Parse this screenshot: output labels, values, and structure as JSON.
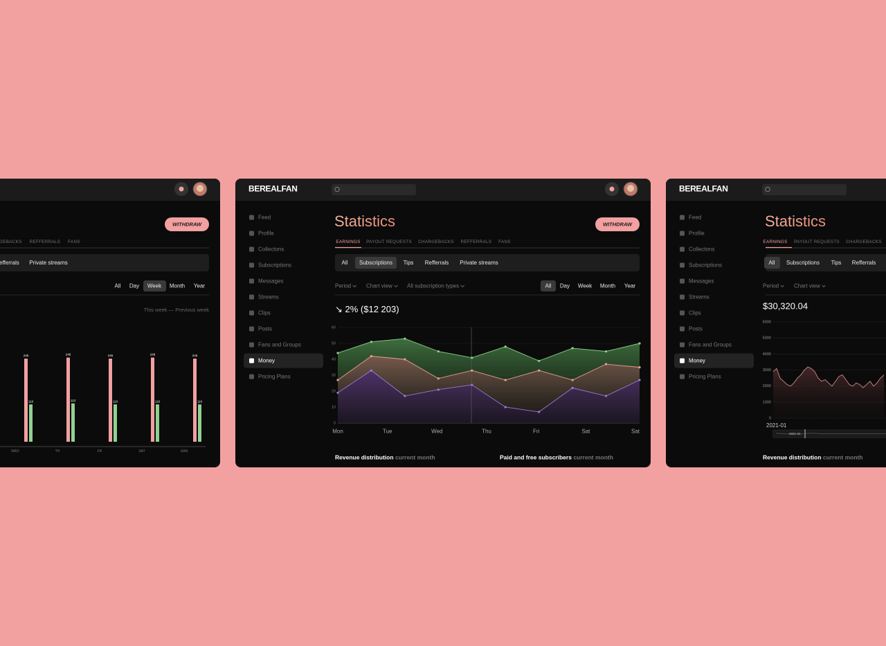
{
  "left_panel": {
    "withdraw": "WITHDRAW",
    "tabs": [
      "GEBACKS",
      "REFFERRALS",
      "FANS"
    ],
    "filters": [
      "efferrals",
      "Private streams"
    ],
    "periods": [
      "All",
      "Day",
      "Week",
      "Month",
      "Year"
    ],
    "legend": "This week — Previous week",
    "chart": {
      "type": "bar",
      "categories": [
        "WED",
        "TH",
        "FR",
        "SAT",
        "SAN"
      ],
      "series": [
        {
          "color": "#f2a0a0",
          "values": [
            245,
            248,
            245,
            248,
            245
          ]
        },
        {
          "color": "#8fd18f",
          "values": [
            110,
            113,
            110,
            110,
            110
          ]
        }
      ]
    }
  },
  "center_panel": {
    "logo": "BEREALFAN",
    "sidebar": [
      "Feed",
      "Profile",
      "Collectons",
      "Subscriptions",
      "Messages",
      "Streams",
      "Clips",
      "Posts",
      "Fans and Groups",
      "Money",
      "Pricing Plans"
    ],
    "title": "Statistics",
    "withdraw": "WITHDRAW",
    "tabs": [
      "EARNINGS",
      "PAYOUT REQUESTS",
      "CHARGEBACKS",
      "REFFERRALS",
      "FANS"
    ],
    "filters": [
      "All",
      "Subscriptions",
      "Tips",
      "Refferrals",
      "Private streams"
    ],
    "dropdowns": [
      "Period",
      "Chart view",
      "All subscription types"
    ],
    "periods": [
      "All",
      "Day",
      "Week",
      "Month",
      "Year"
    ],
    "change_label": "↘ 2% ($12 203)",
    "chart": {
      "type": "area",
      "ylim": [
        0,
        60
      ],
      "yticks": [
        0,
        10,
        20,
        30,
        40,
        50,
        60
      ],
      "x_labels": [
        "Mon",
        "Tue",
        "Wed",
        "Thu",
        "Fri",
        "Sat",
        "Sat"
      ],
      "series": [
        {
          "color": "#8fd18f",
          "values": [
            44,
            51,
            53,
            45,
            41,
            48,
            39,
            47,
            45,
            50
          ]
        },
        {
          "color": "#e8a090",
          "values": [
            27,
            42,
            40,
            28,
            33,
            27,
            33,
            27,
            37,
            35
          ]
        },
        {
          "color": "#9a7ad0",
          "values": [
            19,
            33,
            17,
            21,
            24,
            10,
            7,
            22,
            17,
            27
          ]
        }
      ]
    },
    "footer": [
      {
        "title": "Revenue distribution",
        "note": "current month"
      },
      {
        "title": "Paid and free subscribers",
        "note": "current month"
      }
    ]
  },
  "right_panel": {
    "logo": "BEREALFAN",
    "sidebar": [
      "Feed",
      "Profile",
      "Collectons",
      "Subscriptions",
      "Messages",
      "Streams",
      "Clips",
      "Posts",
      "Fans and Groups",
      "Money",
      "Pricing Plans"
    ],
    "title": "Statistics",
    "tabs": [
      "EARNINGS",
      "PAYOUT REQUESTS",
      "CHARGEBACKS"
    ],
    "filters": [
      "All",
      "Subscriptions",
      "Tips",
      "Refferrals"
    ],
    "dropdowns": [
      "Period",
      "Chart view"
    ],
    "total": "$30,320.04",
    "chart": {
      "type": "line",
      "ylim": [
        0,
        6000
      ],
      "yticks": [
        0,
        1000,
        2000,
        3000,
        4000,
        5000,
        6000
      ],
      "x_labels": [
        "2021-01"
      ],
      "range_label": "2021-01",
      "series": [
        {
          "color": "#c98a86",
          "values": [
            2900,
            3100,
            2500,
            2300,
            2100,
            2000,
            2200,
            2500,
            2700,
            3000,
            3200,
            3100,
            2900,
            2500,
            2300,
            2400,
            2200,
            2000,
            2300,
            2600,
            2700,
            2400,
            2100,
            2000,
            2200,
            2100,
            1900,
            2100,
            2300,
            2000,
            2200,
            2500,
            2700
          ]
        }
      ]
    },
    "footer": [
      {
        "title": "Revenue distribution",
        "note": "current month"
      }
    ]
  }
}
